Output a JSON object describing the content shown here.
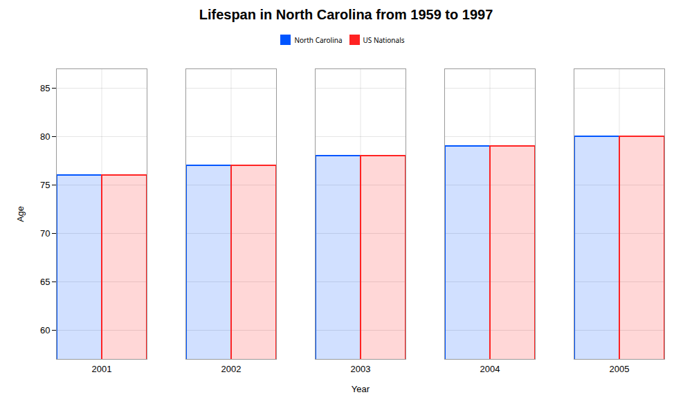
{
  "chart_data": {
    "type": "bar",
    "title": "Lifespan in North Carolina from 1959 to 1997",
    "xlabel": "Year",
    "ylabel": "Age",
    "categories": [
      2001,
      2002,
      2003,
      2004,
      2005
    ],
    "series": [
      {
        "name": "North Carolina",
        "color": "#0055ff",
        "values": [
          76,
          77,
          78,
          79,
          80
        ]
      },
      {
        "name": "US Nationals",
        "color": "#ff2222",
        "values": [
          76,
          77,
          78,
          79,
          80
        ]
      }
    ],
    "ylim": [
      57,
      87
    ],
    "yticks": [
      60,
      65,
      70,
      75,
      80,
      85
    ],
    "grid": true,
    "legend": "top"
  }
}
